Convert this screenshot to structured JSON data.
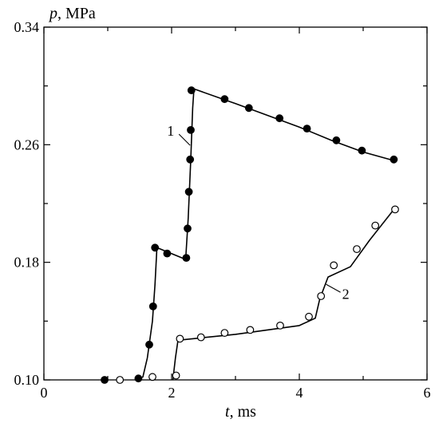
{
  "chart_data": {
    "type": "line",
    "xlabel": {
      "var": "t",
      "unit": ", ms"
    },
    "ylabel": {
      "var": "p",
      "unit": ", MPa"
    },
    "xlim": [
      0,
      6
    ],
    "ylim": [
      0.1,
      0.34
    ],
    "xticks": [
      0,
      2,
      4,
      6
    ],
    "yticks": [
      "0.10",
      "0.18",
      "0.26",
      "0.34"
    ],
    "grid": false,
    "legend": "none",
    "series": [
      {
        "label": "1",
        "marker": "filled-circle",
        "color": "#000000",
        "curve": [
          [
            1.45,
            0.1
          ],
          [
            1.55,
            0.102
          ],
          [
            1.62,
            0.115
          ],
          [
            1.7,
            0.14
          ],
          [
            1.74,
            0.165
          ],
          [
            1.77,
            0.19
          ],
          [
            2.22,
            0.182
          ],
          [
            2.26,
            0.21
          ],
          [
            2.3,
            0.25
          ],
          [
            2.33,
            0.285
          ],
          [
            2.35,
            0.298
          ],
          [
            3.0,
            0.288
          ],
          [
            3.5,
            0.28
          ],
          [
            4.0,
            0.272
          ],
          [
            4.5,
            0.263
          ],
          [
            5.0,
            0.255
          ],
          [
            5.5,
            0.249
          ]
        ],
        "points": [
          [
            0.95,
            0.1
          ],
          [
            1.48,
            0.101
          ],
          [
            1.65,
            0.124
          ],
          [
            1.71,
            0.15
          ],
          [
            1.74,
            0.19
          ],
          [
            1.93,
            0.186
          ],
          [
            2.23,
            0.183
          ],
          [
            2.25,
            0.203
          ],
          [
            2.27,
            0.228
          ],
          [
            2.29,
            0.25
          ],
          [
            2.3,
            0.27
          ],
          [
            2.31,
            0.297
          ],
          [
            2.83,
            0.291
          ],
          [
            3.21,
            0.285
          ],
          [
            3.69,
            0.278
          ],
          [
            4.12,
            0.271
          ],
          [
            4.58,
            0.263
          ],
          [
            4.98,
            0.256
          ],
          [
            5.48,
            0.25
          ]
        ]
      },
      {
        "label": "2",
        "marker": "open-circle",
        "color": "#000000",
        "curve": [
          [
            2.02,
            0.1
          ],
          [
            2.06,
            0.115
          ],
          [
            2.1,
            0.127
          ],
          [
            3.0,
            0.131
          ],
          [
            4.0,
            0.137
          ],
          [
            4.25,
            0.142
          ],
          [
            4.32,
            0.155
          ],
          [
            4.45,
            0.17
          ],
          [
            4.8,
            0.177
          ],
          [
            5.1,
            0.195
          ],
          [
            5.5,
            0.217
          ]
        ],
        "points": [
          [
            1.19,
            0.1
          ],
          [
            1.7,
            0.102
          ],
          [
            2.07,
            0.103
          ],
          [
            2.13,
            0.128
          ],
          [
            2.46,
            0.129
          ],
          [
            2.83,
            0.132
          ],
          [
            3.23,
            0.134
          ],
          [
            3.7,
            0.137
          ],
          [
            4.15,
            0.143
          ],
          [
            4.34,
            0.157
          ],
          [
            4.54,
            0.178
          ],
          [
            4.9,
            0.189
          ],
          [
            5.19,
            0.205
          ],
          [
            5.5,
            0.216
          ]
        ]
      }
    ]
  }
}
